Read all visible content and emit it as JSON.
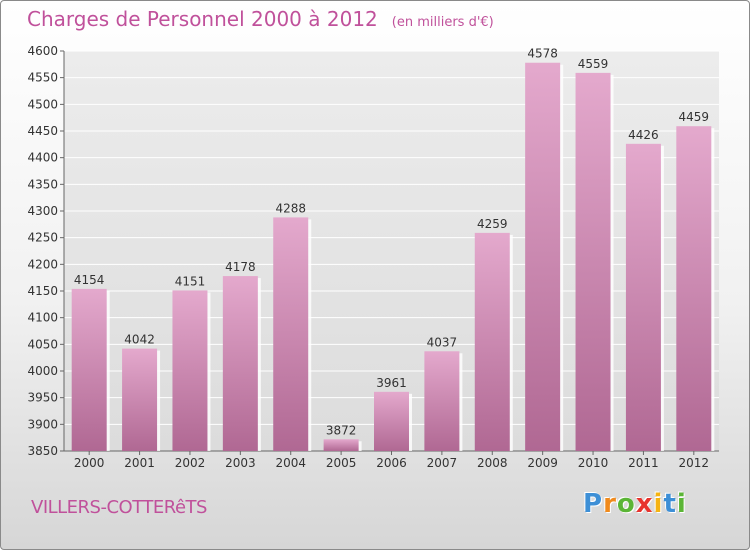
{
  "chart_data": {
    "type": "bar",
    "title": "Charges de Personnel 2000 à 2012",
    "unit_note": "(en milliers d'€)",
    "categories": [
      "2000",
      "2001",
      "2002",
      "2003",
      "2004",
      "2005",
      "2006",
      "2007",
      "2008",
      "2009",
      "2010",
      "2011",
      "2012"
    ],
    "values": [
      4154,
      4042,
      4151,
      4178,
      4288,
      3872,
      3961,
      4037,
      4259,
      4578,
      4559,
      4426,
      4459
    ],
    "ylim": [
      3850,
      4600
    ],
    "yticks": [
      3850,
      3900,
      3950,
      4000,
      4050,
      4100,
      4150,
      4200,
      4250,
      4300,
      4350,
      4400,
      4450,
      4500,
      4550,
      4600
    ],
    "xlabel": "",
    "ylabel": "",
    "grid": true,
    "colors": {
      "bar_top": "#e4a9cd",
      "bar_bottom": "#b06893",
      "accent": "#c0519b"
    }
  },
  "footer": {
    "commune": "VILLERS-COTTERêTS",
    "logo_letters": [
      {
        "ch": "P",
        "color": "#3d8fd6"
      },
      {
        "ch": "r",
        "color": "#f08a1c"
      },
      {
        "ch": "o",
        "color": "#5bb536"
      },
      {
        "ch": "x",
        "color": "#e8342e"
      },
      {
        "ch": "i",
        "color": "#f5b312"
      },
      {
        "ch": "t",
        "color": "#3d8fd6"
      },
      {
        "ch": "i",
        "color": "#5bb536"
      }
    ]
  }
}
